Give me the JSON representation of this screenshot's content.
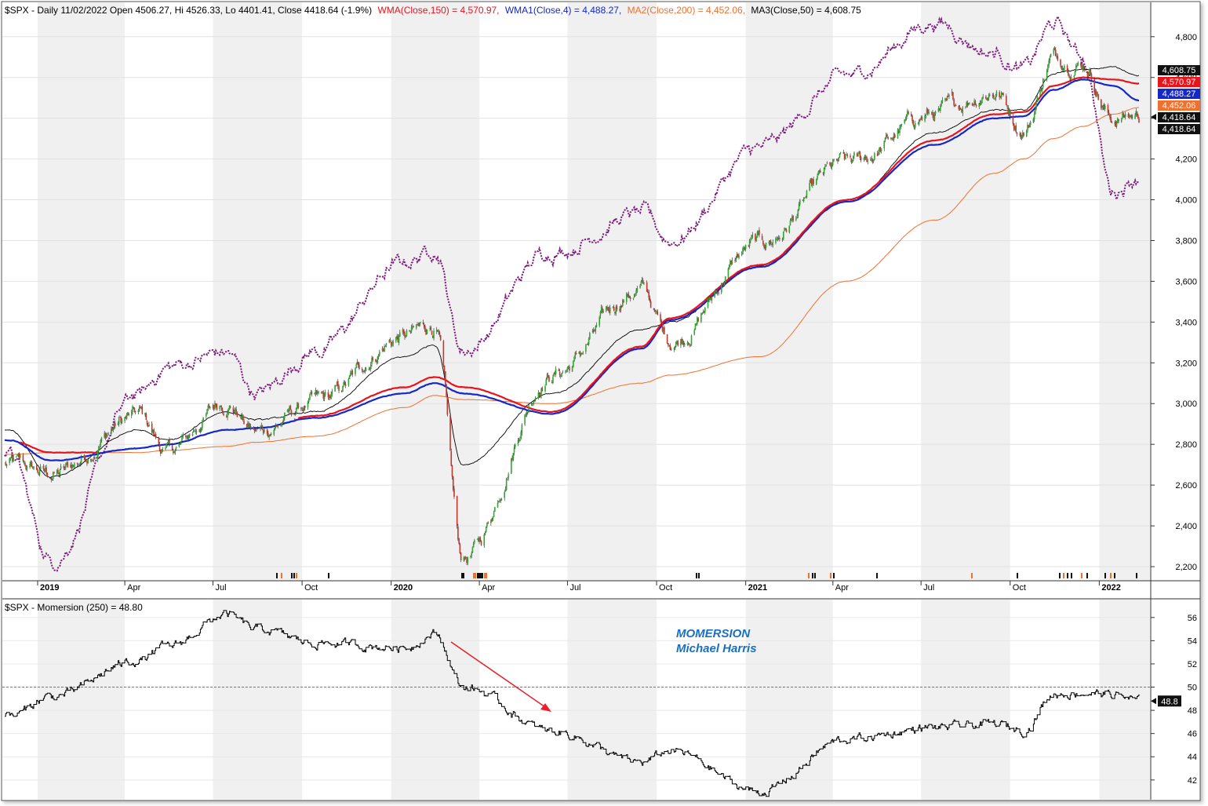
{
  "header": {
    "ticker_info": "$SPX - Daily 11/02/2022 Open 4506.27, Hi 4526.33, Lo 4401.41, Close 4418.64 (-1.9%)",
    "wma150": "WMA(Close,150) = 4,570.97,",
    "wma4": "WMA1(Close,4) = 4,488.27,",
    "ma200": "MA2(Close,200) = 4,452.06,",
    "ma50": "MA3(Close,50) = 4,608.75"
  },
  "colors": {
    "bull": "#2ea82e",
    "bear": "#c0392b",
    "wma150": "#e8141c",
    "wma_blue": "#1428c8",
    "ma200": "#f07030",
    "ma50": "#000000",
    "dotted": "#7a1a7a",
    "band": "#f0f0f0"
  },
  "price_badges": [
    "4,608.75",
    "4,570.97",
    "4,488.27",
    "4,452.06",
    "4,418.64",
    "4,418.64"
  ],
  "momersion_title": "$SPX - Momersion (250) = 48.80",
  "momersion_badge": "48.8",
  "annotation": {
    "line1": "MOMERSION",
    "line2": "Michael Harris"
  },
  "x_axis_labels": [
    "2019",
    "Apr",
    "Jul",
    "Oct",
    "2020",
    "Apr",
    "Jul",
    "Oct",
    "2021",
    "Apr",
    "Jul",
    "Oct",
    "2022"
  ],
  "chart_data": [
    {
      "type": "line",
      "title": "$SPX - Daily 11/02/2022 Open 4506.27, Hi 4526.33, Lo 4401.41, Close 4418.64 (-1.9%)",
      "x": [
        "2018-12",
        "2019-01",
        "2019-04",
        "2019-05",
        "2019-07",
        "2019-08",
        "2019-10",
        "2020-01",
        "2020-02",
        "2020-03",
        "2020-06",
        "2020-09",
        "2020-10",
        "2021-01",
        "2021-04",
        "2021-07",
        "2021-09",
        "2021-10",
        "2021-11",
        "2021-12",
        "2022-01",
        "2022-02"
      ],
      "ylim": [
        2150,
        4880
      ],
      "yticks": [
        2200,
        2400,
        2600,
        2800,
        3000,
        3200,
        3400,
        3600,
        3800,
        4000,
        4200,
        4400,
        4600,
        4800
      ],
      "series": [
        {
          "name": "$SPX",
          "values": [
            2700,
            2650,
            2940,
            2760,
            3010,
            2860,
            3000,
            3330,
            3380,
            2240,
            3150,
            3560,
            3310,
            3780,
            4170,
            4420,
            4540,
            4350,
            4700,
            4680,
            4400,
            4420
          ]
        },
        {
          "name": "WMA(Close,150)",
          "values": [
            2820,
            2760,
            2760,
            2790,
            2860,
            2880,
            2940,
            3080,
            3130,
            3080,
            2960,
            3280,
            3420,
            3680,
            4000,
            4290,
            4420,
            4430,
            4560,
            4600,
            4590,
            4571
          ]
        },
        {
          "name": "WMA1(Close,4)",
          "values": [
            2820,
            2720,
            2780,
            2800,
            2870,
            2880,
            2930,
            3050,
            3100,
            3050,
            2950,
            3270,
            3410,
            3670,
            3990,
            4270,
            4400,
            4410,
            4540,
            4590,
            4560,
            4488
          ]
        },
        {
          "name": "MA2(Close,200)",
          "values": [
            2750,
            2760,
            2760,
            2770,
            2790,
            2810,
            2840,
            2980,
            3040,
            3020,
            3000,
            3100,
            3140,
            3230,
            3600,
            3900,
            4130,
            4200,
            4300,
            4360,
            4420,
            4452
          ]
        },
        {
          "name": "MA3(Close,50)",
          "values": [
            2870,
            2640,
            2870,
            2820,
            2960,
            2920,
            2960,
            3230,
            3290,
            2700,
            3050,
            3360,
            3400,
            3680,
            3990,
            4330,
            4440,
            4440,
            4620,
            4640,
            4650,
            4609
          ]
        },
        {
          "values": [
            2750,
            2230,
            3040,
            3180,
            3250,
            3050,
            3260,
            3690,
            3760,
            3260,
            3750,
            3930,
            3800,
            4250,
            4600,
            4870,
            4720,
            4640,
            4860,
            4700,
            4040,
            4120
          ]
        }
      ]
    },
    {
      "type": "line",
      "title": "$SPX - Momersion (250) = 48.80",
      "x": [
        "2018-12",
        "2019-01",
        "2019-04",
        "2019-05",
        "2019-07",
        "2019-08",
        "2019-10",
        "2020-01",
        "2020-02",
        "2020-03",
        "2020-06",
        "2020-09",
        "2020-10",
        "2021-01",
        "2021-04",
        "2021-07",
        "2021-09",
        "2021-10",
        "2021-11",
        "2021-12",
        "2022-01",
        "2022-02"
      ],
      "ylim": [
        40.5,
        57
      ],
      "yticks": [
        42,
        44,
        46,
        48,
        50,
        52,
        54,
        56
      ],
      "reference_line": 50,
      "series": [
        {
          "name": "Momersion (250)",
          "values": [
            47.5,
            49.2,
            52.3,
            53.5,
            56.2,
            55,
            53.8,
            53.4,
            54.6,
            50,
            46.2,
            43.5,
            44.5,
            41,
            45.5,
            46.5,
            46.8,
            46.3,
            49.4,
            49.5,
            49.4,
            48.8
          ]
        }
      ]
    }
  ]
}
